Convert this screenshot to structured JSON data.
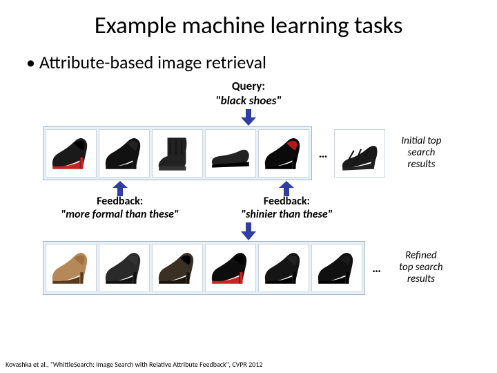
{
  "title": "Example machine learning tasks",
  "bullet": "Attribute-based image retrieval",
  "query": {
    "label": "Query:",
    "text": "\"black shoes\""
  },
  "side_labels": {
    "initial": "Initial top\nsearch\nresults",
    "refined": "Refined\ntop search\nresults"
  },
  "dots": "…",
  "feedback": {
    "left": {
      "label": "Feedback:",
      "text": "\"more formal than these\""
    },
    "right": {
      "label": "Feedback:",
      "text": "\"shinier than these\""
    }
  },
  "citation": "Kovashka et al., \"WhittleSearch: Image Search with Relative Attribute Feedback\", CVPR 2012",
  "arrow_color": "#2f3ea0",
  "strip_border": "#9fb8c9",
  "strip_bg": "#eaf1f6",
  "shoes": {
    "row1": [
      {
        "type": "heel",
        "body": "#1a1a1a",
        "sole": "#c22",
        "accent": "#000"
      },
      {
        "type": "heel",
        "body": "#111",
        "sole": "#111",
        "accent": "#222"
      },
      {
        "type": "boot",
        "body": "#222",
        "sole": "#333",
        "accent": "#111"
      },
      {
        "type": "flat",
        "body": "#222",
        "sole": "#000",
        "accent": "#333"
      },
      {
        "type": "heel",
        "body": "#0a0a0a",
        "sole": "#000",
        "accent": "#b01a1a"
      },
      {
        "type": "sandal",
        "body": "#1a1a1a",
        "sole": "#222",
        "accent": "#111"
      }
    ],
    "row2": [
      {
        "type": "heel",
        "body": "#b5885a",
        "sole": "#5a3a1a",
        "accent": "#a07040"
      },
      {
        "type": "heel",
        "body": "#2a2a2a",
        "sole": "#111",
        "accent": "#333"
      },
      {
        "type": "heel",
        "body": "#3a3023",
        "sole": "#1a140c",
        "accent": "#000"
      },
      {
        "type": "heel",
        "body": "#0d0d0d",
        "sole": "#c22",
        "accent": "#000"
      },
      {
        "type": "heel",
        "body": "#151515",
        "sole": "#000",
        "accent": "#222"
      },
      {
        "type": "heel",
        "body": "#101010",
        "sole": "#000",
        "accent": "#1a1a1a"
      }
    ]
  }
}
